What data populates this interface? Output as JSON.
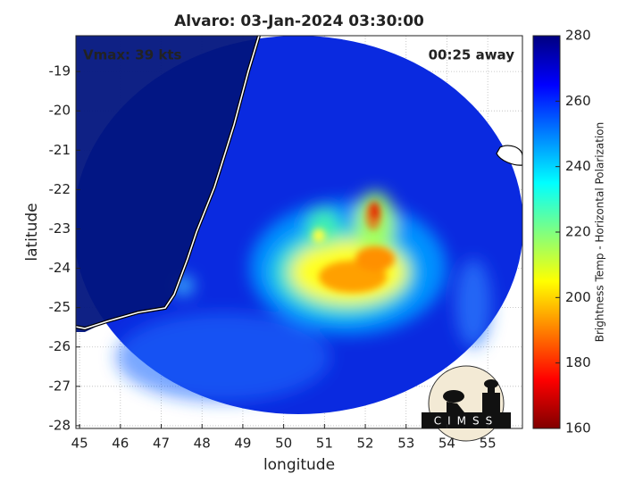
{
  "chart_data": {
    "type": "heatmap",
    "title": "Alvaro: 03-Jan-2024 03:30:00",
    "annotations": [
      "Vmax: 39 kts",
      "00:25 away"
    ],
    "x_label": "longitude",
    "y_label": "latitude",
    "xlim": [
      44.91,
      55.85
    ],
    "xticks": [
      45,
      46,
      47,
      48,
      49,
      50,
      51,
      52,
      53,
      54,
      55
    ],
    "ylim": [
      -28.07,
      -18.09
    ],
    "yticks": [
      -19,
      -20,
      -21,
      -22,
      -23,
      -24,
      -25,
      -26,
      -27,
      -28
    ],
    "grid": true,
    "colorbar": {
      "label": "Brightness Temp - Horizontal Polarization",
      "lim": [
        160,
        280
      ],
      "ticks": [
        160,
        180,
        200,
        220,
        240,
        260,
        280
      ],
      "colors": [
        "#800000",
        "#ff0000",
        "#ff8000",
        "#ffff00",
        "#80ff80",
        "#00ffff",
        "#0080ff",
        "#0000ff",
        "#000080"
      ]
    }
  },
  "logo": "CIMSS"
}
